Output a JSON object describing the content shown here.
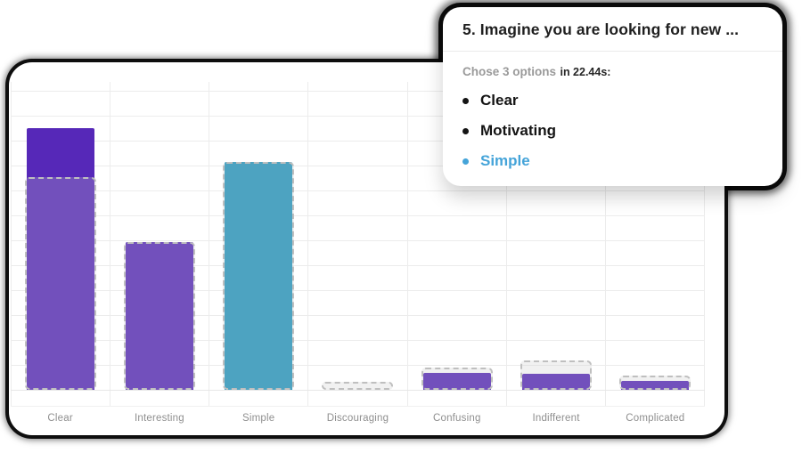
{
  "page": {
    "background": "#ffffff"
  },
  "question_card": {
    "title": "5. Imagine you are looking for new ...",
    "summary_chose": "Chose 3 options",
    "summary_time": "in 22.44s:",
    "options": [
      {
        "label": "Clear",
        "highlighted": false
      },
      {
        "label": "Motivating",
        "highlighted": false
      },
      {
        "label": "Simple",
        "highlighted": true
      }
    ],
    "highlight_color": "#45a4d9"
  },
  "chart_data": {
    "type": "bar",
    "title": "",
    "xlabel": "",
    "ylabel": "",
    "categories": [
      "Clear",
      "Interesting",
      "Simple",
      "Discouraging",
      "Confusing",
      "Indifferent",
      "Complicated"
    ],
    "series": [
      {
        "name": "selected-fill",
        "values": [
          85,
          48,
          74,
          0,
          5.5,
          5.2,
          2.9
        ]
      },
      {
        "name": "comparison-dashed-outline",
        "values": [
          69,
          48,
          74,
          2.6,
          7.2,
          9.5,
          4.6
        ]
      }
    ],
    "bar_colors": [
      "#5628b8",
      "#5628b8",
      "#2497bf",
      "#5628b8",
      "#5628b8",
      "#5628b8",
      "#5628b8"
    ],
    "highlighted_category": "Simple",
    "ylim": [
      0,
      100
    ],
    "grid": true,
    "legend": "none"
  },
  "colors": {
    "bar_purple": "#5628b8",
    "bar_blue": "#2497bf",
    "outline_stroke": "#bfbfbf",
    "outline_fill": "rgba(200,200,200,0.25)",
    "gridline": "#ececec",
    "axis_label_gray": "#8f8f8f",
    "card_ring_black": "#0b0b0b"
  }
}
